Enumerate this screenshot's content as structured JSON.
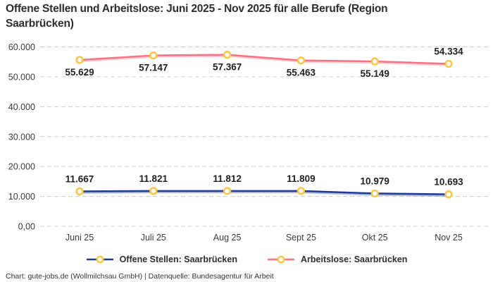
{
  "title": "Offene Stellen und Arbeitslose: Juni 2025 - Nov 2025 für alle Berufe (Region Saarbrücken)",
  "footer": "Chart: gute-jobs.de (Wollmilchsau GmbH) | Datenquelle: Bundesagentur für Arbeit",
  "colors": {
    "background": "#ffffff",
    "grid": "#cccccc",
    "title_text": "#2d2d2d",
    "tick_text": "#3a3a3a",
    "label_text": "#1f1f1f",
    "series_open_positions": "#1d3b91",
    "series_unemployed": "#f97182",
    "marker_ring": "#ffc53d",
    "marker_fill": "#ffffff"
  },
  "legend": {
    "items": [
      {
        "label": "Offene Stellen: Saarbrücken",
        "color": "#1d3b91"
      },
      {
        "label": "Arbeitslose: Saarbrücken",
        "color": "#f97182"
      }
    ]
  },
  "chart_data": {
    "type": "line",
    "title": "Offene Stellen und Arbeitslose: Juni 2025 - Nov 2025 für alle Berufe (Region Saarbrücken)",
    "categories": [
      "Juni 25",
      "Juli 25",
      "Aug 25",
      "Sept 25",
      "Okt 25",
      "Nov 25"
    ],
    "series": [
      {
        "name": "Offene Stellen: Saarbrücken",
        "color": "#1d3b91",
        "values": [
          11667,
          11821,
          11812,
          11809,
          10979,
          10693
        ],
        "labels": [
          "11.667",
          "11.821",
          "11.812",
          "11.809",
          "10.979",
          "10.693"
        ],
        "label_position": [
          "above",
          "above",
          "above",
          "above",
          "above",
          "above"
        ]
      },
      {
        "name": "Arbeitslose: Saarbrücken",
        "color": "#f97182",
        "values": [
          55629,
          57147,
          57367,
          55463,
          55149,
          54334
        ],
        "labels": [
          "55.629",
          "57.147",
          "57.367",
          "55.463",
          "55.149",
          "54.334"
        ],
        "label_position": [
          "below",
          "below",
          "below",
          "below",
          "below",
          "above"
        ]
      }
    ],
    "y_ticks": [
      {
        "value": 0,
        "label": "0,00"
      },
      {
        "value": 10000,
        "label": "10.000"
      },
      {
        "value": 20000,
        "label": "20.000"
      },
      {
        "value": 30000,
        "label": "30.000"
      },
      {
        "value": 40000,
        "label": "40.000"
      },
      {
        "value": 50000,
        "label": "50.000"
      },
      {
        "value": 60000,
        "label": "60.000"
      }
    ],
    "ylim": [
      0,
      60000
    ],
    "xlabel": "",
    "ylabel": "",
    "grid": "dashed-horizontal",
    "legend_position": "bottom",
    "marker": {
      "ring": "#ffc53d",
      "fill": "#ffffff"
    }
  }
}
